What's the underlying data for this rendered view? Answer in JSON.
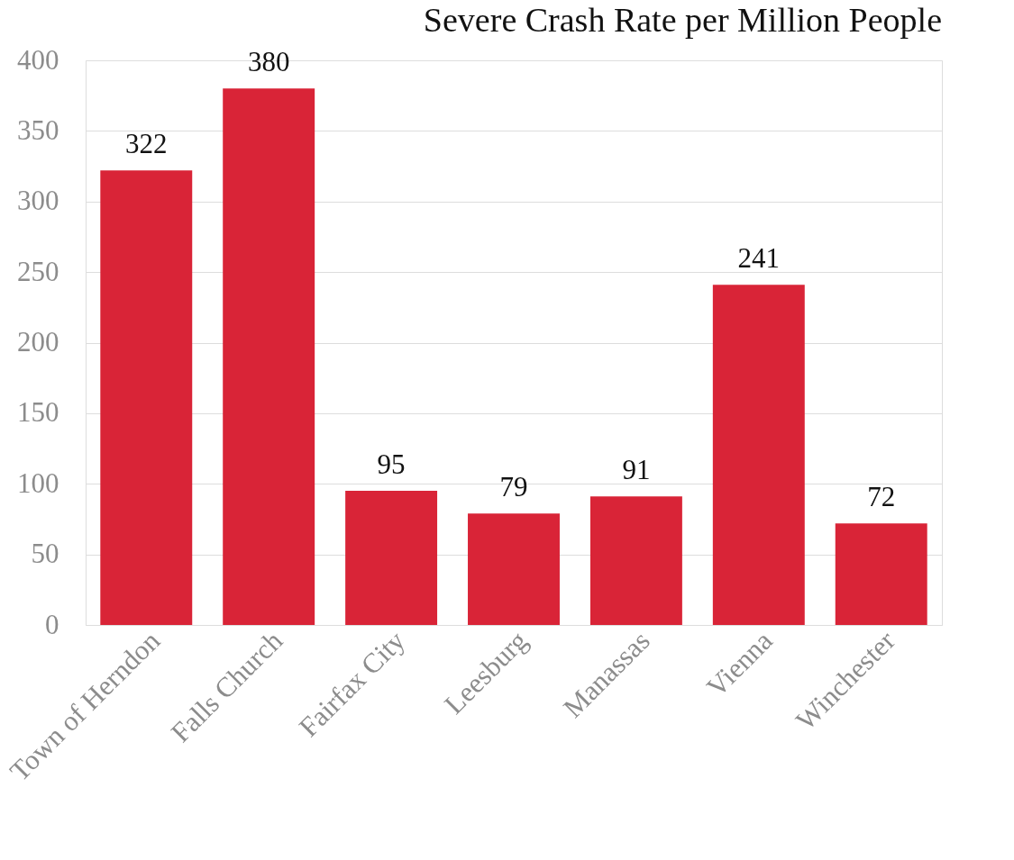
{
  "chart_data": {
    "type": "bar",
    "title": "Severe Crash Rate per Million People",
    "categories": [
      "Town of Herndon",
      "Falls Church",
      "Fairfax City",
      "Leesburg",
      "Manassas",
      "Vienna",
      "Winchester"
    ],
    "values": [
      322,
      380,
      95,
      79,
      91,
      241,
      72
    ],
    "color": "#d92437",
    "ylim": [
      0,
      400
    ],
    "yticks": [
      0,
      50,
      100,
      150,
      200,
      250,
      300,
      350,
      400
    ],
    "grid": "y",
    "data_labels": true
  }
}
